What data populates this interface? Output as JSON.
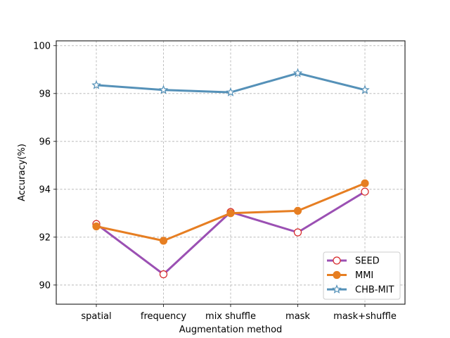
{
  "chart_data": {
    "type": "line",
    "title": "",
    "xlabel": "Augmentation method",
    "ylabel": "Accuracy(%)",
    "categories": [
      "spatial",
      "frequency",
      "mix shuffle",
      "mask",
      "mask+shuffle"
    ],
    "ylim": [
      89.2,
      100.2
    ],
    "yticks": [
      90,
      92,
      94,
      96,
      98,
      100
    ],
    "ytick_labels": [
      "90",
      "92",
      "94",
      "96",
      "98",
      "100"
    ],
    "grid": true,
    "legend_position": "lower-right",
    "series": [
      {
        "name": "SEED",
        "values": [
          92.55,
          90.45,
          93.05,
          92.2,
          93.9
        ],
        "color": "#9b50b3",
        "marker": "circle-open",
        "marker_edge": "#d62728"
      },
      {
        "name": "MMI",
        "values": [
          92.45,
          91.85,
          93.0,
          93.1,
          94.25
        ],
        "color": "#e67e22",
        "marker": "circle-filled",
        "marker_edge": "#e67e22"
      },
      {
        "name": "CHB-MIT",
        "values": [
          98.35,
          98.15,
          98.05,
          98.85,
          98.15
        ],
        "color": "#5591b8",
        "marker": "star-open",
        "marker_edge": "#5591b8"
      }
    ]
  }
}
